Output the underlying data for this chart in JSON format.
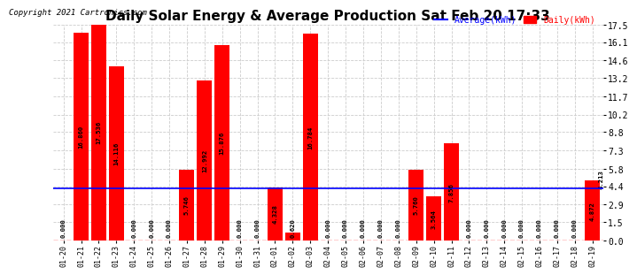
{
  "title": "Daily Solar Energy & Average Production Sat Feb 20 17:33",
  "copyright": "Copyright 2021 Cartronics.com",
  "legend_avg": "Average(kWh)",
  "legend_daily": "Daily(kWh)",
  "categories": [
    "01-20",
    "01-21",
    "01-22",
    "01-23",
    "01-24",
    "01-25",
    "01-26",
    "01-27",
    "01-28",
    "01-29",
    "01-30",
    "01-31",
    "02-01",
    "02-02",
    "02-03",
    "02-04",
    "02-05",
    "02-06",
    "02-07",
    "02-08",
    "02-09",
    "02-10",
    "02-11",
    "02-12",
    "02-13",
    "02-14",
    "02-15",
    "02-16",
    "02-17",
    "02-18",
    "02-19"
  ],
  "values": [
    0.0,
    16.86,
    17.536,
    14.116,
    0.0,
    0.0,
    0.0,
    5.746,
    12.992,
    15.876,
    0.0,
    0.0,
    4.328,
    0.62,
    16.784,
    0.0,
    0.0,
    0.0,
    0.0,
    0.0,
    5.76,
    3.564,
    7.856,
    0.0,
    0.0,
    0.0,
    0.0,
    0.0,
    0.0,
    0.0,
    4.872
  ],
  "average_value": 4.213,
  "bar_color": "#FF0000",
  "avg_line_color": "#0000FF",
  "background_color": "#FFFFFF",
  "grid_color": "#CCCCCC",
  "title_fontsize": 11,
  "yticks": [
    0.0,
    1.5,
    2.9,
    4.4,
    5.8,
    7.3,
    8.8,
    10.2,
    11.7,
    13.2,
    14.6,
    16.1,
    17.5
  ],
  "ymax": 17.5
}
